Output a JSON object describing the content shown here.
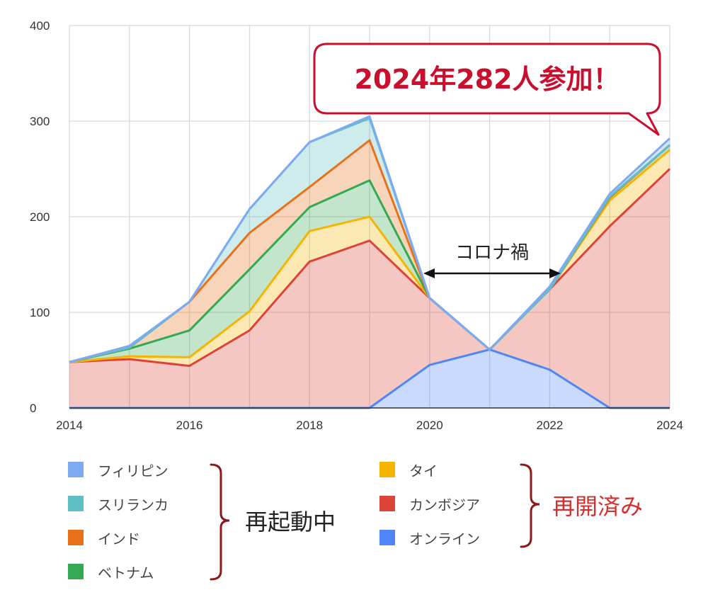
{
  "chart_data": {
    "type": "area",
    "stacked": true,
    "x": [
      2014,
      2015,
      2016,
      2017,
      2018,
      2019,
      2020,
      2021,
      2022,
      2023,
      2024
    ],
    "x_ticks": [
      "2014",
      "2016",
      "2018",
      "2020",
      "2022",
      "2024"
    ],
    "y_ticks": [
      "0",
      "100",
      "200",
      "300",
      "400"
    ],
    "ylim": [
      0,
      400
    ],
    "grid": true,
    "legend_position": "bottom",
    "series": [
      {
        "name": "オンライン",
        "color": "#4f86f7",
        "values": [
          0,
          0,
          0,
          0,
          0,
          0,
          45,
          61,
          40,
          0,
          0
        ]
      },
      {
        "name": "カンボジア",
        "color": "#db4437",
        "values": [
          48,
          51,
          44,
          81,
          153,
          175,
          70,
          0,
          84,
          190,
          250
        ]
      },
      {
        "name": "タイ",
        "color": "#f4b400",
        "values": [
          0,
          3,
          9,
          20,
          32,
          25,
          0,
          0,
          0,
          27,
          20
        ]
      },
      {
        "name": "ベトナム",
        "color": "#34a853",
        "values": [
          0,
          8,
          28,
          44,
          25,
          38,
          0,
          0,
          0,
          3,
          5
        ]
      },
      {
        "name": "インド",
        "color": "#e8711a",
        "values": [
          0,
          1,
          30,
          38,
          21,
          42,
          0,
          0,
          0,
          0,
          0
        ]
      },
      {
        "name": "スリランカ",
        "color": "#5fbfc4",
        "values": [
          0,
          0,
          0,
          25,
          47,
          23,
          0,
          0,
          0,
          1,
          0
        ]
      },
      {
        "name": "フィリピン",
        "color": "#7eaaf2",
        "values": [
          0,
          2,
          0,
          0,
          0,
          2,
          0,
          0,
          3,
          3,
          7
        ]
      }
    ],
    "annotations": {
      "callout": "2024年282人参加！",
      "callout_color": "#c8102e",
      "corona": "コロナ禍"
    },
    "legend_order": [
      "フィリピン",
      "スリランカ",
      "インド",
      "ベトナム",
      "タイ",
      "カンボジア",
      "オンライン"
    ],
    "legend_groups": [
      {
        "label": "再起動中",
        "color": "#222222",
        "bracket_color": "#8b1a1a",
        "members": [
          "フィリピン",
          "スリランカ",
          "インド",
          "ベトナム"
        ]
      },
      {
        "label": "再開済み",
        "color": "#d32f2f",
        "bracket_color": "#8b1a1a",
        "members": [
          "タイ",
          "カンボジア",
          "オンライン"
        ]
      }
    ]
  }
}
